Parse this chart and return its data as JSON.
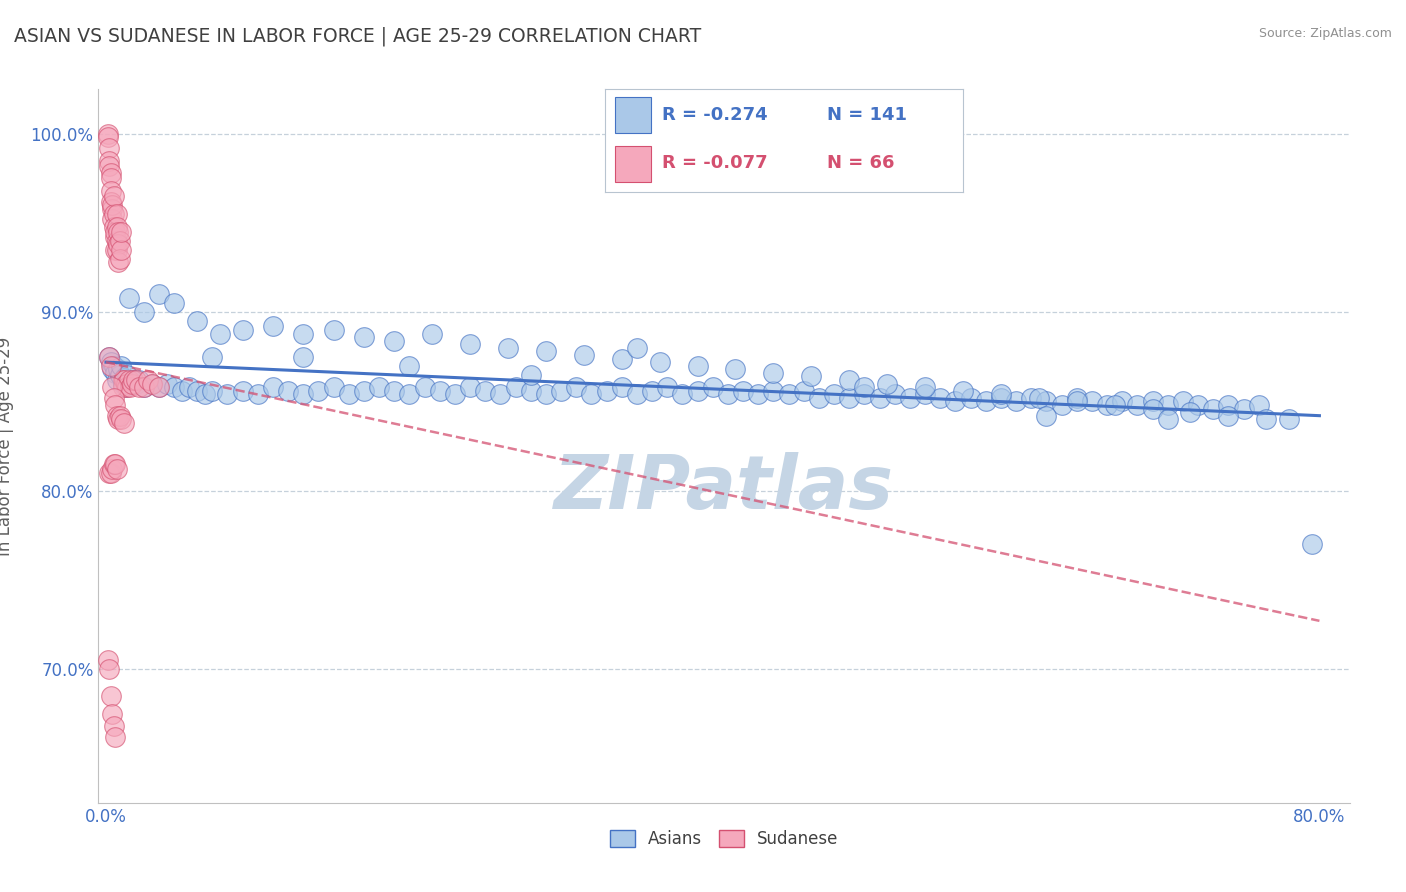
{
  "title": "ASIAN VS SUDANESE IN LABOR FORCE | AGE 25-29 CORRELATION CHART",
  "source_text": "Source: ZipAtlas.com",
  "ylabel": "In Labor Force | Age 25-29",
  "xlim": [
    -0.005,
    0.82
  ],
  "ylim": [
    0.625,
    1.025
  ],
  "xticks": [
    0.0,
    0.1,
    0.2,
    0.3,
    0.4,
    0.5,
    0.6,
    0.7,
    0.8
  ],
  "xticklabels": [
    "0.0%",
    "",
    "",
    "",
    "",
    "",
    "",
    "",
    "80.0%"
  ],
  "ytick_vals": [
    0.7,
    0.8,
    0.9,
    1.0
  ],
  "ytick_labels": [
    "70.0%",
    "80.0%",
    "90.0%",
    "100.0%"
  ],
  "legend_r_asian": "-0.274",
  "legend_n_asian": "141",
  "legend_r_sudanese": "-0.077",
  "legend_n_sudanese": "66",
  "asian_color": "#aac8e8",
  "sudanese_color": "#f5a8bc",
  "asian_line_color": "#4472c4",
  "sudanese_line_color": "#d45070",
  "watermark": "ZIPatlas",
  "watermark_color": "#c5d5e5",
  "background_color": "#ffffff",
  "title_color": "#404040",
  "axis_color": "#4472c4",
  "asian_trend_x0": 0.0,
  "asian_trend_y0": 0.872,
  "asian_trend_x1": 0.8,
  "asian_trend_y1": 0.842,
  "sudanese_trend_x0": 0.0,
  "sudanese_trend_y0": 0.872,
  "sudanese_trend_x1": 0.8,
  "sudanese_trend_y1": 0.727,
  "asian_x": [
    0.002,
    0.003,
    0.004,
    0.005,
    0.006,
    0.007,
    0.008,
    0.009,
    0.01,
    0.011,
    0.012,
    0.013,
    0.014,
    0.015,
    0.018,
    0.02,
    0.022,
    0.025,
    0.03,
    0.035,
    0.04,
    0.045,
    0.05,
    0.055,
    0.06,
    0.065,
    0.07,
    0.08,
    0.09,
    0.1,
    0.11,
    0.12,
    0.13,
    0.14,
    0.15,
    0.16,
    0.17,
    0.18,
    0.19,
    0.2,
    0.21,
    0.22,
    0.23,
    0.24,
    0.25,
    0.26,
    0.27,
    0.28,
    0.29,
    0.3,
    0.31,
    0.32,
    0.33,
    0.34,
    0.35,
    0.36,
    0.37,
    0.38,
    0.39,
    0.4,
    0.41,
    0.42,
    0.43,
    0.44,
    0.45,
    0.46,
    0.47,
    0.48,
    0.49,
    0.5,
    0.51,
    0.52,
    0.53,
    0.54,
    0.55,
    0.56,
    0.57,
    0.58,
    0.59,
    0.6,
    0.61,
    0.62,
    0.63,
    0.64,
    0.65,
    0.66,
    0.67,
    0.68,
    0.69,
    0.7,
    0.71,
    0.72,
    0.73,
    0.74,
    0.75,
    0.76,
    0.795,
    0.015,
    0.025,
    0.035,
    0.045,
    0.06,
    0.075,
    0.09,
    0.11,
    0.13,
    0.15,
    0.17,
    0.19,
    0.215,
    0.24,
    0.265,
    0.29,
    0.315,
    0.34,
    0.365,
    0.39,
    0.415,
    0.44,
    0.465,
    0.49,
    0.515,
    0.54,
    0.565,
    0.59,
    0.615,
    0.64,
    0.665,
    0.69,
    0.715,
    0.74,
    0.765,
    0.35,
    0.5,
    0.62,
    0.7,
    0.78,
    0.07,
    0.13,
    0.2,
    0.28
  ],
  "asian_y": [
    0.875,
    0.872,
    0.868,
    0.87,
    0.866,
    0.862,
    0.868,
    0.865,
    0.87,
    0.86,
    0.863,
    0.858,
    0.865,
    0.86,
    0.862,
    0.86,
    0.862,
    0.858,
    0.86,
    0.858,
    0.86,
    0.858,
    0.856,
    0.858,
    0.856,
    0.854,
    0.856,
    0.854,
    0.856,
    0.854,
    0.858,
    0.856,
    0.854,
    0.856,
    0.858,
    0.854,
    0.856,
    0.858,
    0.856,
    0.854,
    0.858,
    0.856,
    0.854,
    0.858,
    0.856,
    0.854,
    0.858,
    0.856,
    0.854,
    0.856,
    0.858,
    0.854,
    0.856,
    0.858,
    0.854,
    0.856,
    0.858,
    0.854,
    0.856,
    0.858,
    0.854,
    0.856,
    0.854,
    0.856,
    0.854,
    0.856,
    0.852,
    0.854,
    0.852,
    0.854,
    0.852,
    0.854,
    0.852,
    0.854,
    0.852,
    0.85,
    0.852,
    0.85,
    0.852,
    0.85,
    0.852,
    0.85,
    0.848,
    0.852,
    0.85,
    0.848,
    0.85,
    0.848,
    0.85,
    0.848,
    0.85,
    0.848,
    0.846,
    0.848,
    0.846,
    0.848,
    0.77,
    0.908,
    0.9,
    0.91,
    0.905,
    0.895,
    0.888,
    0.89,
    0.892,
    0.888,
    0.89,
    0.886,
    0.884,
    0.888,
    0.882,
    0.88,
    0.878,
    0.876,
    0.874,
    0.872,
    0.87,
    0.868,
    0.866,
    0.864,
    0.862,
    0.86,
    0.858,
    0.856,
    0.854,
    0.852,
    0.85,
    0.848,
    0.846,
    0.844,
    0.842,
    0.84,
    0.88,
    0.858,
    0.842,
    0.84,
    0.84,
    0.875,
    0.875,
    0.87,
    0.865
  ],
  "sudanese_x": [
    0.001,
    0.001,
    0.002,
    0.002,
    0.002,
    0.003,
    0.003,
    0.003,
    0.003,
    0.004,
    0.004,
    0.004,
    0.005,
    0.005,
    0.005,
    0.006,
    0.006,
    0.006,
    0.007,
    0.007,
    0.007,
    0.007,
    0.008,
    0.008,
    0.008,
    0.009,
    0.009,
    0.01,
    0.01,
    0.011,
    0.011,
    0.012,
    0.013,
    0.014,
    0.015,
    0.016,
    0.017,
    0.018,
    0.02,
    0.022,
    0.025,
    0.028,
    0.03,
    0.035,
    0.002,
    0.003,
    0.004,
    0.005,
    0.006,
    0.007,
    0.008,
    0.009,
    0.01,
    0.012,
    0.001,
    0.002,
    0.003,
    0.004,
    0.005,
    0.006,
    0.002,
    0.003,
    0.004,
    0.005,
    0.006,
    0.007
  ],
  "sudanese_y": [
    1.0,
    0.998,
    0.992,
    0.985,
    0.982,
    0.978,
    0.975,
    0.968,
    0.962,
    0.958,
    0.952,
    0.96,
    0.955,
    0.948,
    0.965,
    0.942,
    0.935,
    0.945,
    0.94,
    0.955,
    0.935,
    0.948,
    0.945,
    0.938,
    0.928,
    0.94,
    0.93,
    0.935,
    0.945,
    0.862,
    0.858,
    0.862,
    0.86,
    0.858,
    0.862,
    0.858,
    0.86,
    0.862,
    0.862,
    0.858,
    0.858,
    0.862,
    0.86,
    0.858,
    0.875,
    0.87,
    0.858,
    0.852,
    0.848,
    0.842,
    0.84,
    0.842,
    0.84,
    0.838,
    0.705,
    0.7,
    0.685,
    0.675,
    0.668,
    0.662,
    0.81,
    0.81,
    0.812,
    0.815,
    0.815,
    0.812
  ]
}
